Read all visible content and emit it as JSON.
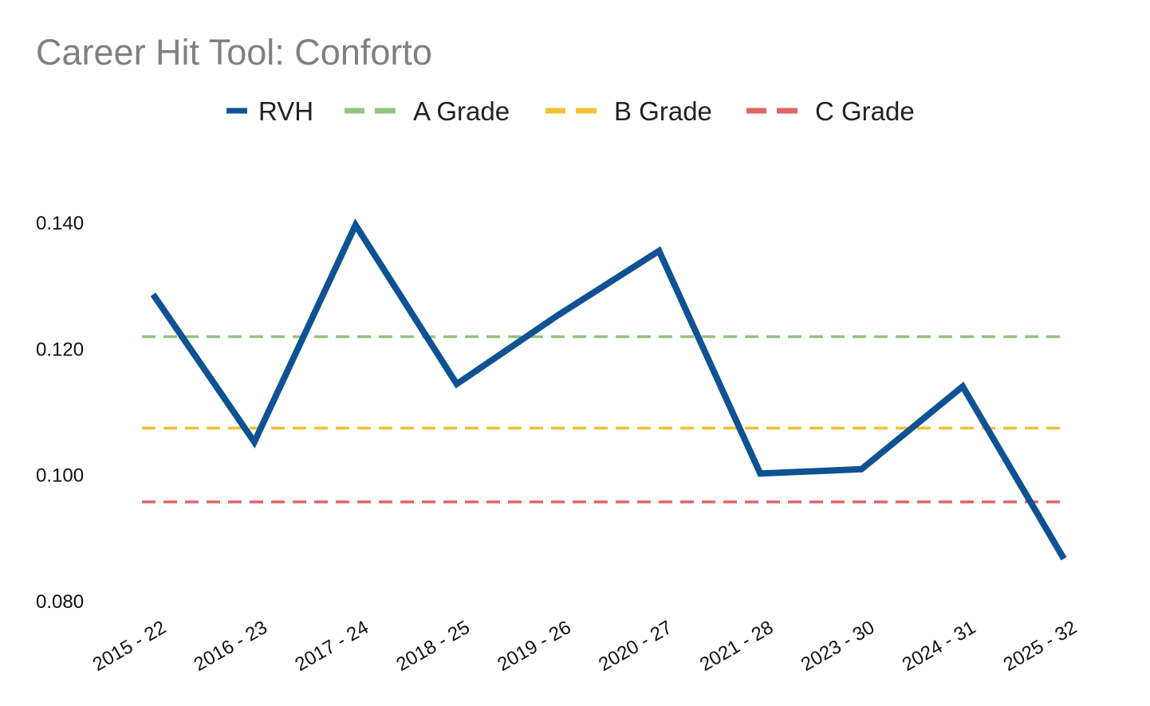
{
  "chart_data": {
    "type": "line",
    "title": "Career Hit Tool: Conforto",
    "xlabel": "",
    "ylabel": "",
    "categories": [
      "2015 - 22",
      "2016 - 23",
      "2017 - 24",
      "2018 - 25",
      "2019 - 26",
      "2020 - 27",
      "2021 - 28",
      "2023 - 30",
      "2024 - 31",
      "2025 - 32"
    ],
    "series": [
      {
        "name": "RVH",
        "color": "#0f5294",
        "values": [
          0.1287,
          0.1053,
          0.1397,
          0.1145,
          0.1254,
          0.1356,
          0.1003,
          0.101,
          0.1141,
          0.0868
        ]
      }
    ],
    "reference_lines": [
      {
        "name": "A Grade",
        "value": 0.122,
        "color": "#93c47d",
        "style": "dashed"
      },
      {
        "name": "B Grade",
        "value": 0.1075,
        "color": "#f1c232",
        "style": "dashed"
      },
      {
        "name": "C Grade",
        "value": 0.0958,
        "color": "#e06666",
        "style": "dashed"
      }
    ],
    "ylim": [
      0.08,
      0.14
    ],
    "yticks": [
      "0.080",
      "0.100",
      "0.120",
      "0.140"
    ],
    "grid": false,
    "legend_position": "top-center"
  }
}
